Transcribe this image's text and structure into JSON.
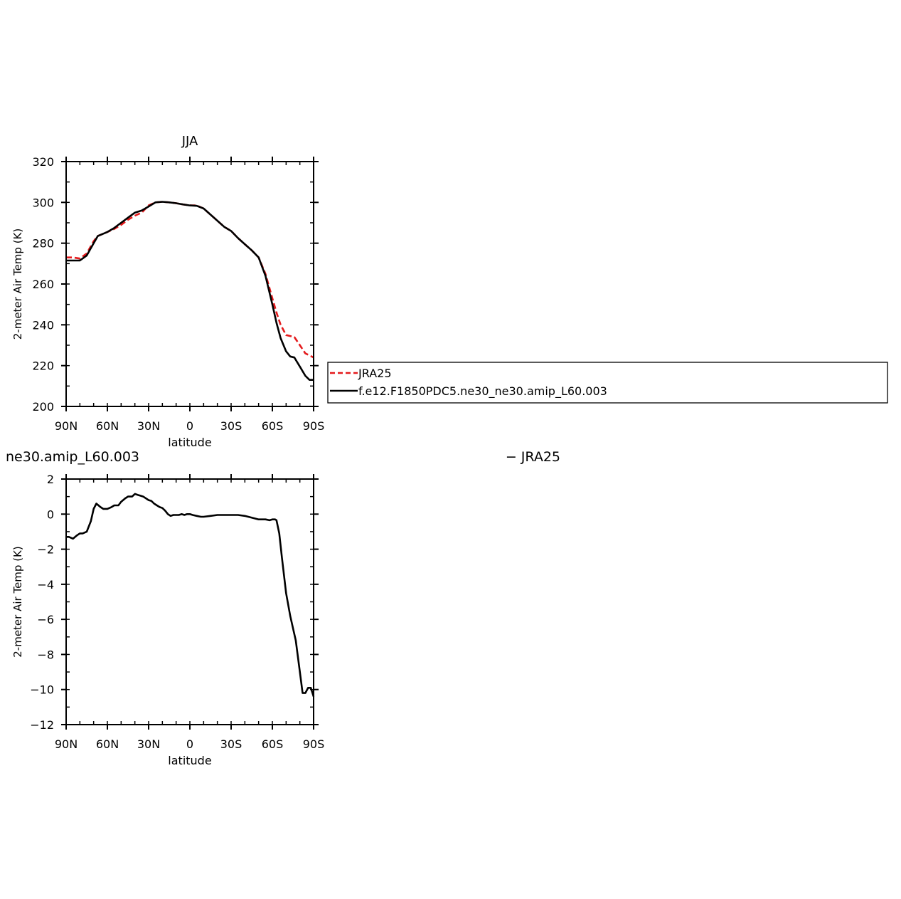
{
  "chart_data": [
    {
      "type": "line",
      "title": "JJA",
      "xlabel": "latitude",
      "ylabel": "2-meter Air Temp (K)",
      "xlim": [
        90,
        -90
      ],
      "ylim": [
        200,
        320
      ],
      "xticks": [
        {
          "value": 90,
          "label": "90N"
        },
        {
          "value": 60,
          "label": "60N"
        },
        {
          "value": 30,
          "label": "30N"
        },
        {
          "value": 0,
          "label": "0"
        },
        {
          "value": -30,
          "label": "30S"
        },
        {
          "value": -60,
          "label": "60S"
        },
        {
          "value": -90,
          "label": "90S"
        }
      ],
      "yticks": [
        {
          "value": 200,
          "label": "200"
        },
        {
          "value": 220,
          "label": "220"
        },
        {
          "value": 240,
          "label": "240"
        },
        {
          "value": 260,
          "label": "260"
        },
        {
          "value": 280,
          "label": "280"
        },
        {
          "value": 300,
          "label": "300"
        },
        {
          "value": 320,
          "label": "320"
        }
      ],
      "legend": "right",
      "series": [
        {
          "name": "JRA25",
          "color": "#e41a1c",
          "dash": "dashed",
          "x": [
            90,
            85,
            80,
            75,
            70,
            67,
            60,
            55,
            50,
            45,
            40,
            35,
            30,
            25,
            20,
            15,
            10,
            5,
            0,
            -5,
            -10,
            -15,
            -20,
            -25,
            -30,
            -35,
            -40,
            -45,
            -50,
            -55,
            -60,
            -63,
            -66,
            -70,
            -73,
            -76,
            -80,
            -84,
            -87,
            -90
          ],
          "y": [
            273,
            273,
            272.5,
            275,
            281,
            283.5,
            285.5,
            287,
            289,
            291.5,
            293.5,
            295,
            298.5,
            300,
            300.3,
            300,
            299.6,
            299,
            298.5,
            298.5,
            297,
            294,
            291,
            288,
            286,
            282.5,
            279.5,
            276.5,
            273,
            265,
            253,
            246,
            240,
            235,
            234.5,
            234,
            230,
            226,
            225,
            224
          ]
        },
        {
          "name": "f.e12.F1850PDC5.ne30_ne30.amip_L60.003",
          "color": "#000000",
          "dash": "solid",
          "x": [
            90,
            85,
            80,
            75,
            70,
            67,
            60,
            55,
            50,
            45,
            40,
            35,
            30,
            25,
            20,
            15,
            10,
            5,
            0,
            -5,
            -10,
            -15,
            -20,
            -25,
            -30,
            -35,
            -40,
            -45,
            -50,
            -55,
            -60,
            -63,
            -66,
            -70,
            -73,
            -76,
            -80,
            -84,
            -87,
            -90
          ],
          "y": [
            271.5,
            271.5,
            271.5,
            274,
            280,
            283.5,
            285.5,
            287.5,
            290,
            292.5,
            295,
            296,
            298,
            300,
            300.3,
            300,
            299.6,
            299,
            298.5,
            298.3,
            297,
            294,
            291,
            288,
            286,
            282.5,
            279.5,
            276.5,
            273,
            264,
            250,
            241,
            233.5,
            227,
            224.5,
            224,
            219.5,
            215,
            213,
            213
          ]
        }
      ]
    },
    {
      "type": "line",
      "title": "ne30.amip_L60.003",
      "right_title": "− JRA25",
      "xlabel": "latitude",
      "ylabel": "2-meter Air Temp (K)",
      "xlim": [
        90,
        -90
      ],
      "ylim": [
        -12,
        2
      ],
      "xticks": [
        {
          "value": 90,
          "label": "90N"
        },
        {
          "value": 60,
          "label": "60N"
        },
        {
          "value": 30,
          "label": "30N"
        },
        {
          "value": 0,
          "label": "0"
        },
        {
          "value": -30,
          "label": "30S"
        },
        {
          "value": -60,
          "label": "60S"
        },
        {
          "value": -90,
          "label": "90S"
        }
      ],
      "yticks": [
        {
          "value": -12,
          "label": "−12"
        },
        {
          "value": -10,
          "label": "−10"
        },
        {
          "value": -8,
          "label": "−8"
        },
        {
          "value": -6,
          "label": "−6"
        },
        {
          "value": -4,
          "label": "−4"
        },
        {
          "value": -2,
          "label": "−2"
        },
        {
          "value": 0,
          "label": "0"
        },
        {
          "value": 2,
          "label": "2"
        }
      ],
      "series": [
        {
          "color": "#000000",
          "dash": "solid",
          "x": [
            90,
            88,
            85,
            82,
            80,
            78,
            75,
            72,
            70,
            68,
            65,
            63,
            60,
            57,
            55,
            52,
            50,
            47,
            45,
            42,
            40,
            38,
            36,
            34,
            32,
            30,
            28,
            26,
            24,
            22,
            20,
            18,
            16,
            14,
            12,
            10,
            8,
            6,
            4,
            2,
            0,
            -2,
            -5,
            -8,
            -10,
            -15,
            -20,
            -25,
            -30,
            -35,
            -40,
            -45,
            -50,
            -55,
            -58,
            -60,
            -62,
            -63,
            -65,
            -67,
            -70,
            -73,
            -75,
            -77,
            -80,
            -82,
            -84,
            -86,
            -88,
            -90
          ],
          "y": [
            -1.3,
            -1.3,
            -1.4,
            -1.2,
            -1.1,
            -1.1,
            -1.0,
            -0.4,
            0.3,
            0.6,
            0.4,
            0.3,
            0.3,
            0.4,
            0.5,
            0.5,
            0.7,
            0.9,
            1.0,
            1.0,
            1.15,
            1.1,
            1.05,
            1.0,
            0.9,
            0.8,
            0.75,
            0.6,
            0.5,
            0.4,
            0.35,
            0.2,
            0.0,
            -0.1,
            -0.05,
            -0.05,
            -0.05,
            0.0,
            -0.05,
            0.0,
            0.0,
            -0.05,
            -0.1,
            -0.15,
            -0.15,
            -0.1,
            -0.05,
            -0.05,
            -0.05,
            -0.05,
            -0.1,
            -0.2,
            -0.3,
            -0.3,
            -0.35,
            -0.3,
            -0.3,
            -0.35,
            -1.1,
            -2.5,
            -4.5,
            -5.8,
            -6.5,
            -7.2,
            -9.0,
            -10.2,
            -10.2,
            -9.9,
            -9.9,
            -10.4
          ]
        }
      ]
    }
  ]
}
